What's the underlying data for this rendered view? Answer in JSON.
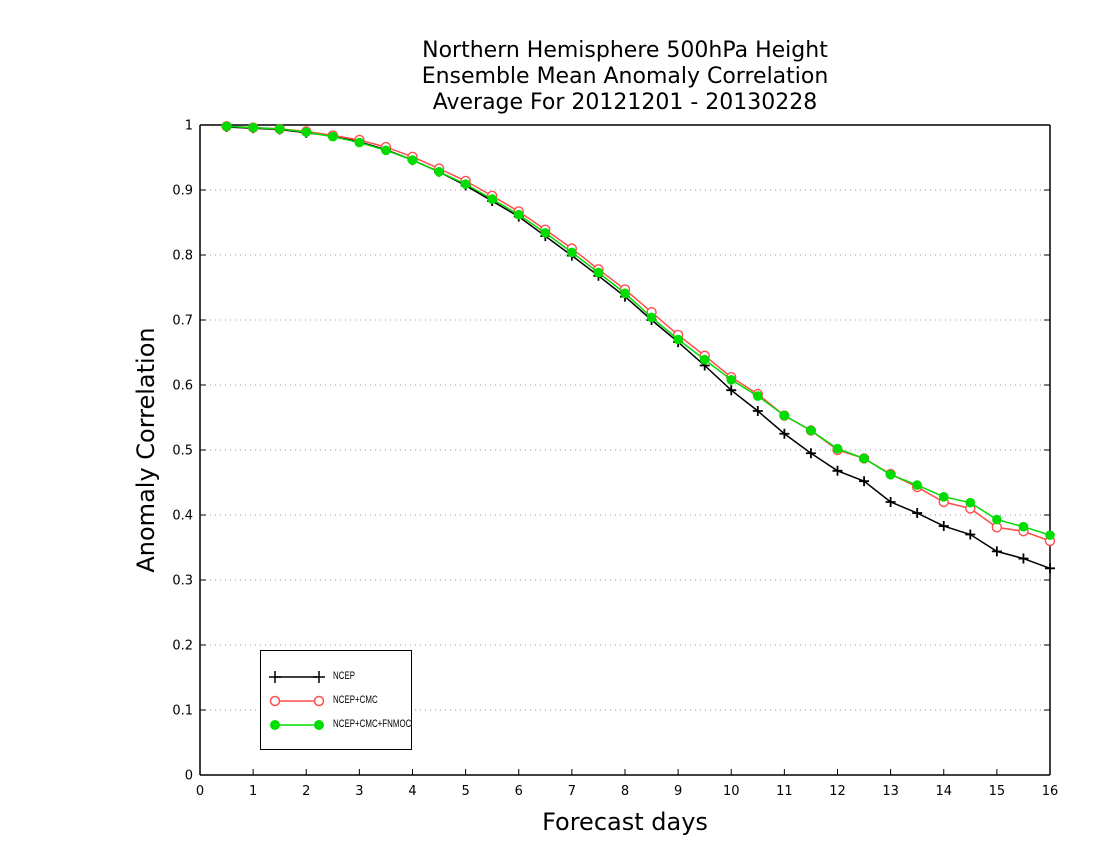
{
  "chart_data": {
    "type": "line",
    "title_lines": [
      "Northern Hemisphere 500hPa Height",
      "Ensemble Mean Anomaly Correlation",
      "Average For 20121201 - 20130228"
    ],
    "xlabel": "Forecast days",
    "ylabel": "Anomaly Correlation",
    "xlim": [
      0,
      16
    ],
    "ylim": [
      0,
      1
    ],
    "xticks": [
      0,
      1,
      2,
      3,
      4,
      5,
      6,
      7,
      8,
      9,
      10,
      11,
      12,
      13,
      14,
      15,
      16
    ],
    "yticks": [
      0,
      0.1,
      0.2,
      0.3,
      0.4,
      0.5,
      0.6,
      0.7,
      0.8,
      0.9,
      1
    ],
    "ytick_labels": [
      "0",
      "0.1",
      "0.2",
      "0.3",
      "0.4",
      "0.5",
      "0.6",
      "0.7",
      "0.8",
      "0.9",
      "1"
    ],
    "grid": "horizontal dotted",
    "legend_position": "bottom-left",
    "x": [
      0.5,
      1,
      1.5,
      2,
      2.5,
      3,
      3.5,
      4,
      4.5,
      5,
      5.5,
      6,
      6.5,
      7,
      7.5,
      8,
      8.5,
      9,
      9.5,
      10,
      10.5,
      11,
      11.5,
      12,
      12.5,
      13,
      13.5,
      14,
      14.5,
      15,
      15.5,
      16
    ],
    "series": [
      {
        "name": "NCEP",
        "color": "#000000",
        "marker": "plus",
        "values": [
          0.997,
          0.995,
          0.993,
          0.988,
          0.983,
          0.974,
          0.962,
          0.946,
          0.928,
          0.907,
          0.883,
          0.859,
          0.829,
          0.799,
          0.768,
          0.736,
          0.7,
          0.666,
          0.63,
          0.592,
          0.56,
          0.525,
          0.495,
          0.468,
          0.452,
          0.42,
          0.403,
          0.383,
          0.37,
          0.344,
          0.333,
          0.318
        ]
      },
      {
        "name": "NCEP+CMC",
        "color": "#ff4d4d",
        "marker": "open-circle",
        "values": [
          0.998,
          0.996,
          0.994,
          0.99,
          0.984,
          0.977,
          0.966,
          0.951,
          0.933,
          0.914,
          0.891,
          0.867,
          0.839,
          0.81,
          0.778,
          0.747,
          0.712,
          0.677,
          0.645,
          0.612,
          0.586,
          0.553,
          0.53,
          0.5,
          0.487,
          0.463,
          0.443,
          0.42,
          0.41,
          0.381,
          0.375,
          0.36
        ]
      },
      {
        "name": "NCEP+CMC+FNMOC",
        "color": "#00dd00",
        "marker": "filled-circle",
        "values": [
          0.998,
          0.996,
          0.994,
          0.989,
          0.982,
          0.973,
          0.961,
          0.946,
          0.928,
          0.909,
          0.886,
          0.862,
          0.834,
          0.804,
          0.773,
          0.741,
          0.704,
          0.67,
          0.639,
          0.608,
          0.583,
          0.553,
          0.53,
          0.502,
          0.487,
          0.462,
          0.446,
          0.428,
          0.419,
          0.393,
          0.382,
          0.369
        ]
      }
    ]
  }
}
